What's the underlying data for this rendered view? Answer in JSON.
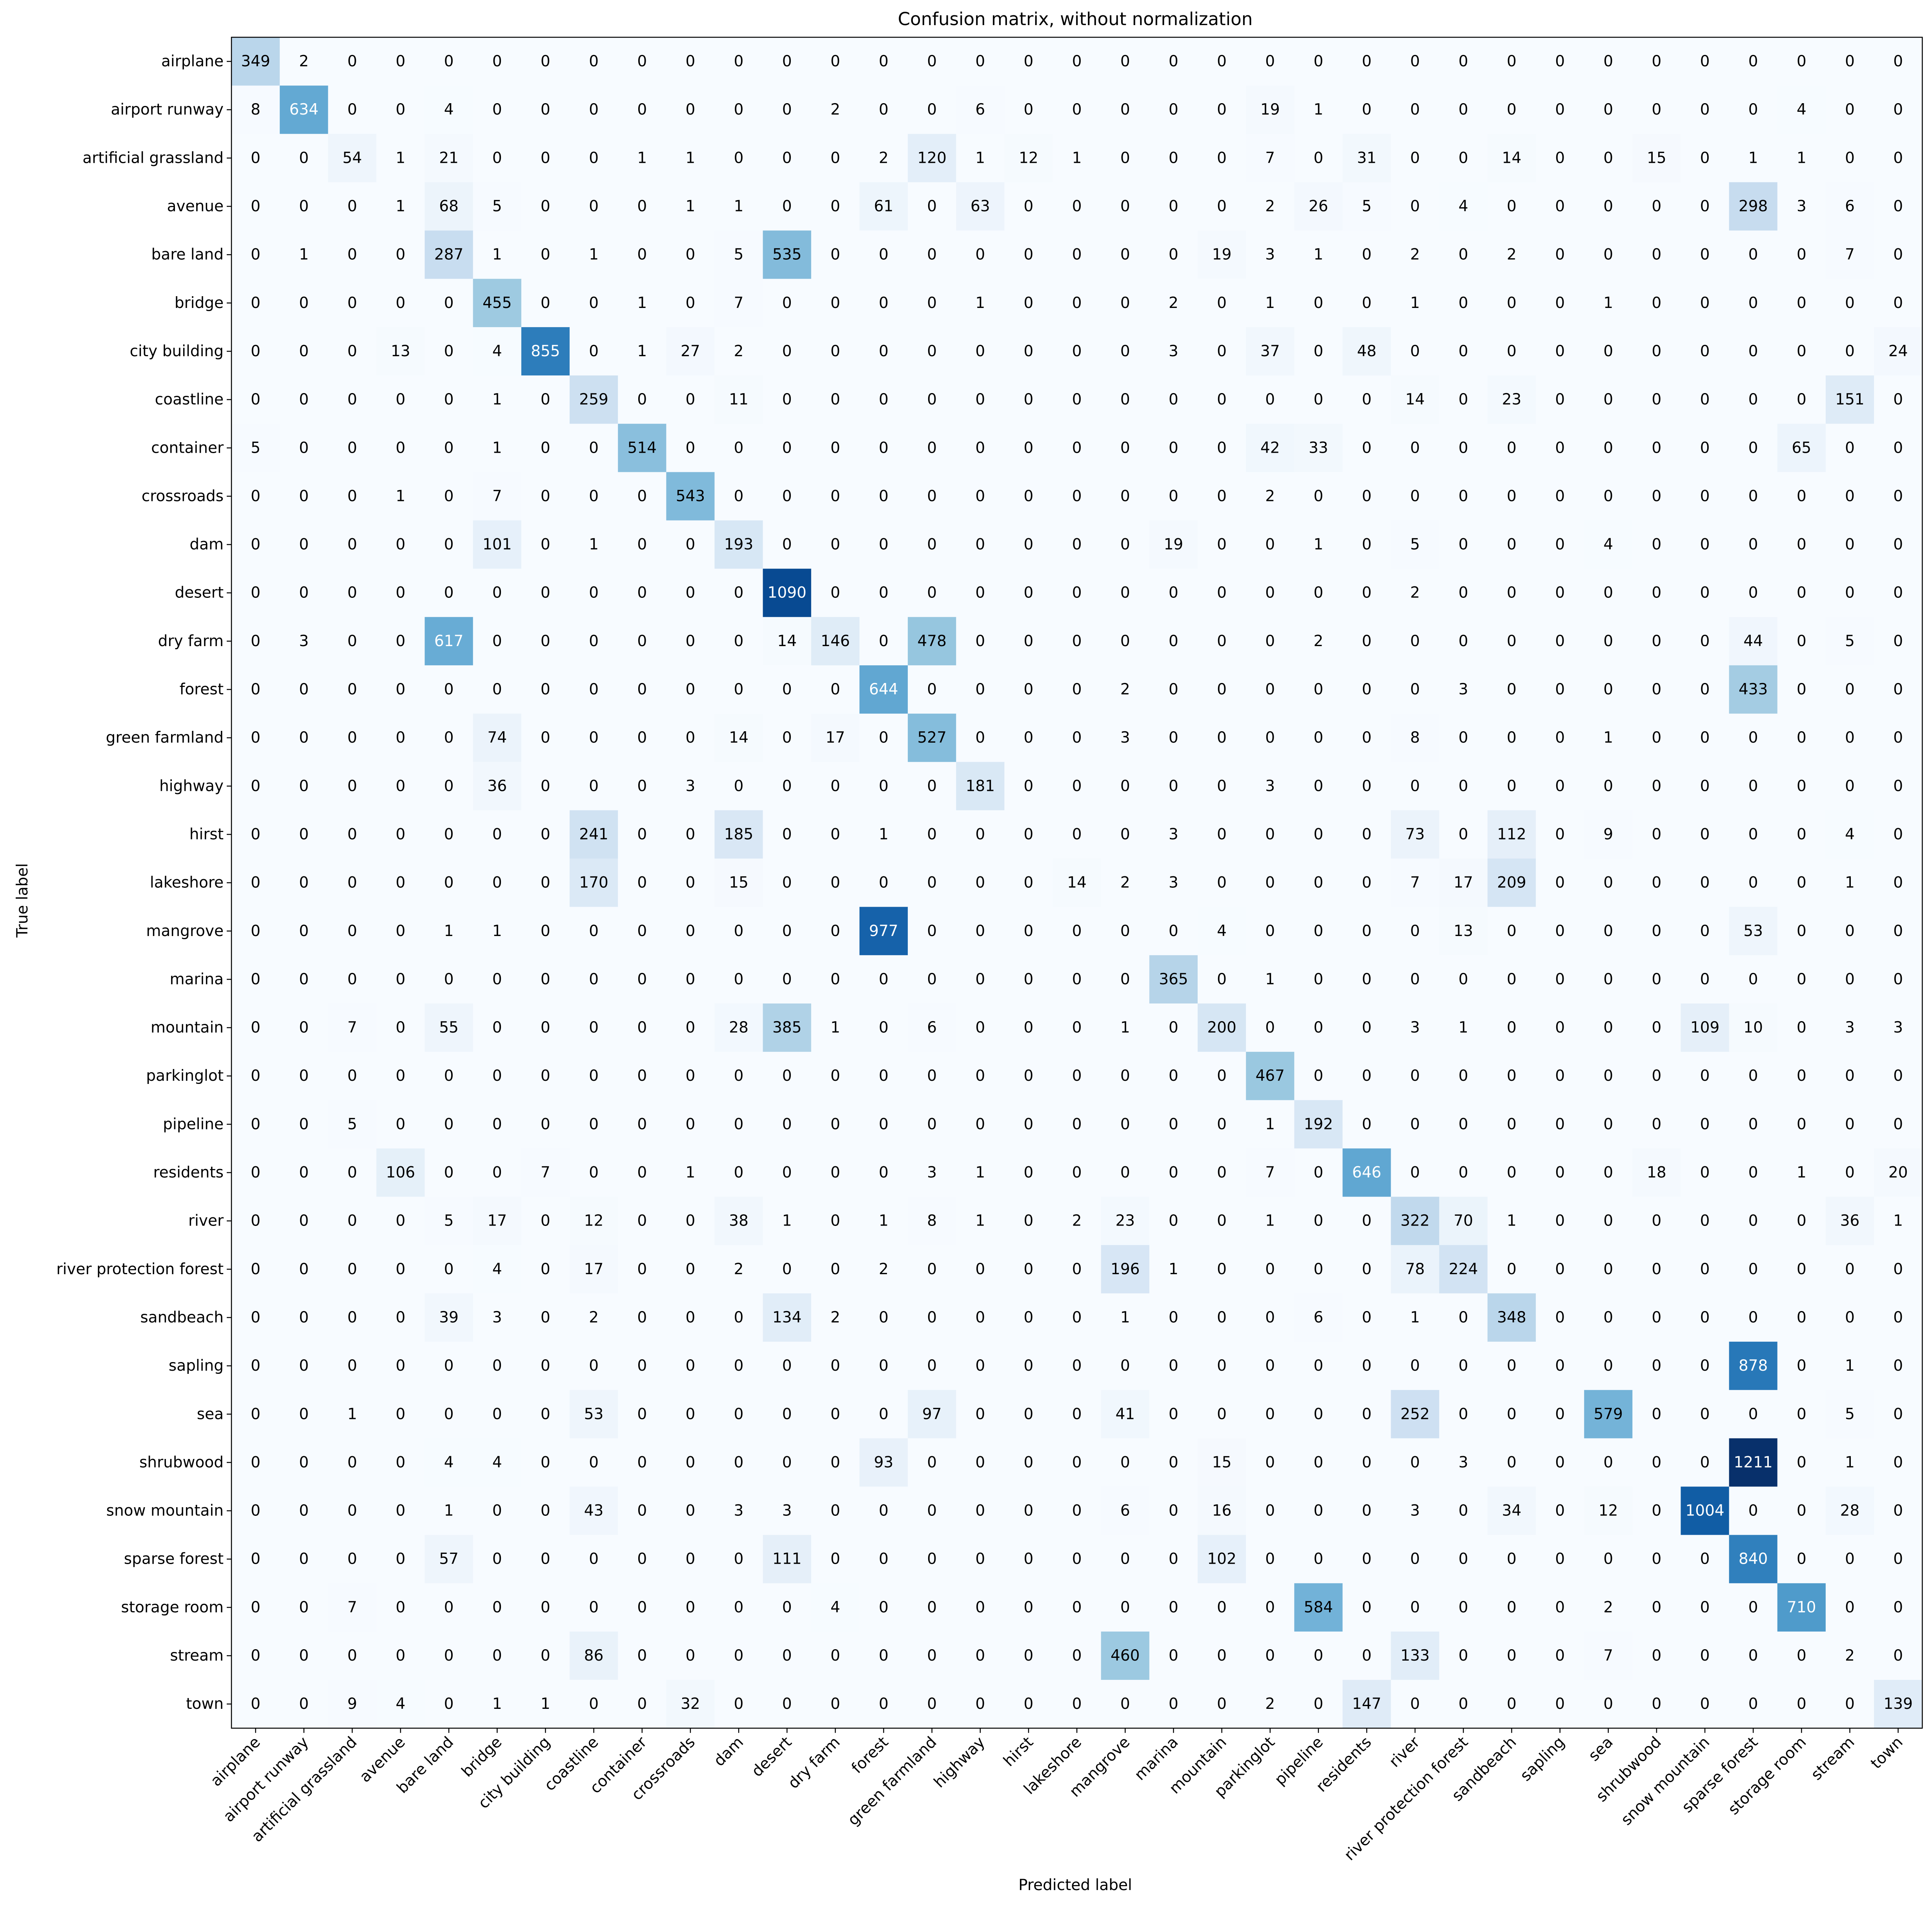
{
  "chart_data": {
    "type": "heatmap",
    "title": "Confusion matrix, without normalization",
    "xlabel": "Predicted label",
    "ylabel": "True label",
    "colormap": "Blues",
    "vmin": 0,
    "vmax": 1211,
    "colors": {
      "low": "#f7fbff",
      "high": "#08306b",
      "text_dark": "#000000",
      "text_light": "#ffffff"
    },
    "labels": [
      "airplane",
      "airport runway",
      "artificial grassland",
      "avenue",
      "bare land",
      "bridge",
      "city building",
      "coastline",
      "container",
      "crossroads",
      "dam",
      "desert",
      "dry farm",
      "forest",
      "green farmland",
      "highway",
      "hirst",
      "lakeshore",
      "mangrove",
      "marina",
      "mountain",
      "parkinglot",
      "pipeline",
      "residents",
      "river",
      "river protection forest",
      "sandbeach",
      "sapling",
      "sea",
      "shrubwood",
      "snow mountain",
      "sparse forest",
      "storage room",
      "stream",
      "town"
    ],
    "matrix": [
      [
        349,
        2,
        0,
        0,
        0,
        0,
        0,
        0,
        0,
        0,
        0,
        0,
        0,
        0,
        0,
        0,
        0,
        0,
        0,
        0,
        0,
        0,
        0,
        0,
        0,
        0,
        0,
        0,
        0,
        0,
        0,
        0,
        0,
        0,
        0
      ],
      [
        8,
        634,
        0,
        0,
        4,
        0,
        0,
        0,
        0,
        0,
        0,
        0,
        2,
        0,
        0,
        6,
        0,
        0,
        0,
        0,
        0,
        19,
        1,
        0,
        0,
        0,
        0,
        0,
        0,
        0,
        0,
        0,
        4,
        0,
        0
      ],
      [
        0,
        0,
        54,
        1,
        21,
        0,
        0,
        0,
        1,
        1,
        0,
        0,
        0,
        2,
        120,
        1,
        12,
        1,
        0,
        0,
        0,
        7,
        0,
        31,
        0,
        0,
        14,
        0,
        0,
        15,
        0,
        1,
        1,
        0,
        0
      ],
      [
        0,
        0,
        0,
        1,
        68,
        5,
        0,
        0,
        0,
        1,
        1,
        0,
        0,
        61,
        0,
        63,
        0,
        0,
        0,
        0,
        0,
        2,
        26,
        5,
        0,
        4,
        0,
        0,
        0,
        0,
        0,
        298,
        3,
        6,
        0
      ],
      [
        0,
        1,
        0,
        0,
        287,
        1,
        0,
        1,
        0,
        0,
        5,
        535,
        0,
        0,
        0,
        0,
        0,
        0,
        0,
        0,
        19,
        3,
        1,
        0,
        2,
        0,
        2,
        0,
        0,
        0,
        0,
        0,
        0,
        7,
        0
      ],
      [
        0,
        0,
        0,
        0,
        0,
        455,
        0,
        0,
        1,
        0,
        7,
        0,
        0,
        0,
        0,
        1,
        0,
        0,
        0,
        2,
        0,
        1,
        0,
        0,
        1,
        0,
        0,
        0,
        1,
        0,
        0,
        0,
        0,
        0,
        0
      ],
      [
        0,
        0,
        0,
        13,
        0,
        4,
        855,
        0,
        1,
        27,
        2,
        0,
        0,
        0,
        0,
        0,
        0,
        0,
        0,
        3,
        0,
        37,
        0,
        48,
        0,
        0,
        0,
        0,
        0,
        0,
        0,
        0,
        0,
        0,
        24
      ],
      [
        0,
        0,
        0,
        0,
        0,
        1,
        0,
        259,
        0,
        0,
        11,
        0,
        0,
        0,
        0,
        0,
        0,
        0,
        0,
        0,
        0,
        0,
        0,
        0,
        14,
        0,
        23,
        0,
        0,
        0,
        0,
        0,
        0,
        151,
        0
      ],
      [
        5,
        0,
        0,
        0,
        0,
        1,
        0,
        0,
        514,
        0,
        0,
        0,
        0,
        0,
        0,
        0,
        0,
        0,
        0,
        0,
        0,
        42,
        33,
        0,
        0,
        0,
        0,
        0,
        0,
        0,
        0,
        0,
        65,
        0,
        0
      ],
      [
        0,
        0,
        0,
        1,
        0,
        7,
        0,
        0,
        0,
        543,
        0,
        0,
        0,
        0,
        0,
        0,
        0,
        0,
        0,
        0,
        0,
        2,
        0,
        0,
        0,
        0,
        0,
        0,
        0,
        0,
        0,
        0,
        0,
        0,
        0
      ],
      [
        0,
        0,
        0,
        0,
        0,
        101,
        0,
        1,
        0,
        0,
        193,
        0,
        0,
        0,
        0,
        0,
        0,
        0,
        0,
        19,
        0,
        0,
        1,
        0,
        5,
        0,
        0,
        0,
        4,
        0,
        0,
        0,
        0,
        0,
        0
      ],
      [
        0,
        0,
        0,
        0,
        0,
        0,
        0,
        0,
        0,
        0,
        0,
        1090,
        0,
        0,
        0,
        0,
        0,
        0,
        0,
        0,
        0,
        0,
        0,
        0,
        2,
        0,
        0,
        0,
        0,
        0,
        0,
        0,
        0,
        0,
        0
      ],
      [
        0,
        3,
        0,
        0,
        617,
        0,
        0,
        0,
        0,
        0,
        0,
        14,
        146,
        0,
        478,
        0,
        0,
        0,
        0,
        0,
        0,
        0,
        2,
        0,
        0,
        0,
        0,
        0,
        0,
        0,
        0,
        44,
        0,
        5,
        0
      ],
      [
        0,
        0,
        0,
        0,
        0,
        0,
        0,
        0,
        0,
        0,
        0,
        0,
        0,
        644,
        0,
        0,
        0,
        0,
        2,
        0,
        0,
        0,
        0,
        0,
        0,
        3,
        0,
        0,
        0,
        0,
        0,
        433,
        0,
        0,
        0
      ],
      [
        0,
        0,
        0,
        0,
        0,
        74,
        0,
        0,
        0,
        0,
        14,
        0,
        17,
        0,
        527,
        0,
        0,
        0,
        3,
        0,
        0,
        0,
        0,
        0,
        8,
        0,
        0,
        0,
        1,
        0,
        0,
        0,
        0,
        0,
        0
      ],
      [
        0,
        0,
        0,
        0,
        0,
        36,
        0,
        0,
        0,
        3,
        0,
        0,
        0,
        0,
        0,
        181,
        0,
        0,
        0,
        0,
        0,
        3,
        0,
        0,
        0,
        0,
        0,
        0,
        0,
        0,
        0,
        0,
        0,
        0,
        0
      ],
      [
        0,
        0,
        0,
        0,
        0,
        0,
        0,
        241,
        0,
        0,
        185,
        0,
        0,
        1,
        0,
        0,
        0,
        0,
        0,
        3,
        0,
        0,
        0,
        0,
        73,
        0,
        112,
        0,
        9,
        0,
        0,
        0,
        0,
        4,
        0
      ],
      [
        0,
        0,
        0,
        0,
        0,
        0,
        0,
        170,
        0,
        0,
        15,
        0,
        0,
        0,
        0,
        0,
        0,
        14,
        2,
        3,
        0,
        0,
        0,
        0,
        7,
        17,
        209,
        0,
        0,
        0,
        0,
        0,
        0,
        1,
        0
      ],
      [
        0,
        0,
        0,
        0,
        1,
        1,
        0,
        0,
        0,
        0,
        0,
        0,
        0,
        977,
        0,
        0,
        0,
        0,
        0,
        0,
        4,
        0,
        0,
        0,
        0,
        13,
        0,
        0,
        0,
        0,
        0,
        53,
        0,
        0,
        0
      ],
      [
        0,
        0,
        0,
        0,
        0,
        0,
        0,
        0,
        0,
        0,
        0,
        0,
        0,
        0,
        0,
        0,
        0,
        0,
        0,
        365,
        0,
        1,
        0,
        0,
        0,
        0,
        0,
        0,
        0,
        0,
        0,
        0,
        0,
        0,
        0
      ],
      [
        0,
        0,
        7,
        0,
        55,
        0,
        0,
        0,
        0,
        0,
        28,
        385,
        1,
        0,
        6,
        0,
        0,
        0,
        1,
        0,
        200,
        0,
        0,
        0,
        3,
        1,
        0,
        0,
        0,
        0,
        109,
        10,
        0,
        3,
        3
      ],
      [
        0,
        0,
        0,
        0,
        0,
        0,
        0,
        0,
        0,
        0,
        0,
        0,
        0,
        0,
        0,
        0,
        0,
        0,
        0,
        0,
        0,
        467,
        0,
        0,
        0,
        0,
        0,
        0,
        0,
        0,
        0,
        0,
        0,
        0,
        0
      ],
      [
        0,
        0,
        5,
        0,
        0,
        0,
        0,
        0,
        0,
        0,
        0,
        0,
        0,
        0,
        0,
        0,
        0,
        0,
        0,
        0,
        0,
        1,
        192,
        0,
        0,
        0,
        0,
        0,
        0,
        0,
        0,
        0,
        0,
        0,
        0
      ],
      [
        0,
        0,
        0,
        106,
        0,
        0,
        7,
        0,
        0,
        1,
        0,
        0,
        0,
        0,
        3,
        1,
        0,
        0,
        0,
        0,
        0,
        7,
        0,
        646,
        0,
        0,
        0,
        0,
        0,
        18,
        0,
        0,
        1,
        0,
        20
      ],
      [
        0,
        0,
        0,
        0,
        5,
        17,
        0,
        12,
        0,
        0,
        38,
        1,
        0,
        1,
        8,
        1,
        0,
        2,
        23,
        0,
        0,
        1,
        0,
        0,
        322,
        70,
        1,
        0,
        0,
        0,
        0,
        0,
        0,
        36,
        1
      ],
      [
        0,
        0,
        0,
        0,
        0,
        4,
        0,
        17,
        0,
        0,
        2,
        0,
        0,
        2,
        0,
        0,
        0,
        0,
        196,
        1,
        0,
        0,
        0,
        0,
        78,
        224,
        0,
        0,
        0,
        0,
        0,
        0,
        0,
        0,
        0
      ],
      [
        0,
        0,
        0,
        0,
        39,
        3,
        0,
        2,
        0,
        0,
        0,
        134,
        2,
        0,
        0,
        0,
        0,
        0,
        1,
        0,
        0,
        0,
        6,
        0,
        1,
        0,
        348,
        0,
        0,
        0,
        0,
        0,
        0,
        0,
        0
      ],
      [
        0,
        0,
        0,
        0,
        0,
        0,
        0,
        0,
        0,
        0,
        0,
        0,
        0,
        0,
        0,
        0,
        0,
        0,
        0,
        0,
        0,
        0,
        0,
        0,
        0,
        0,
        0,
        0,
        0,
        0,
        0,
        878,
        0,
        1,
        0
      ],
      [
        0,
        0,
        1,
        0,
        0,
        0,
        0,
        53,
        0,
        0,
        0,
        0,
        0,
        0,
        97,
        0,
        0,
        0,
        41,
        0,
        0,
        0,
        0,
        0,
        252,
        0,
        0,
        0,
        579,
        0,
        0,
        0,
        0,
        5,
        0
      ],
      [
        0,
        0,
        0,
        0,
        4,
        4,
        0,
        0,
        0,
        0,
        0,
        0,
        0,
        93,
        0,
        0,
        0,
        0,
        0,
        0,
        15,
        0,
        0,
        0,
        0,
        3,
        0,
        0,
        0,
        0,
        0,
        1211,
        0,
        1,
        0
      ],
      [
        0,
        0,
        0,
        0,
        1,
        0,
        0,
        43,
        0,
        0,
        3,
        3,
        0,
        0,
        0,
        0,
        0,
        0,
        6,
        0,
        16,
        0,
        0,
        0,
        3,
        0,
        34,
        0,
        12,
        0,
        1004,
        0,
        0,
        28,
        0
      ],
      [
        0,
        0,
        0,
        0,
        57,
        0,
        0,
        0,
        0,
        0,
        0,
        111,
        0,
        0,
        0,
        0,
        0,
        0,
        0,
        0,
        102,
        0,
        0,
        0,
        0,
        0,
        0,
        0,
        0,
        0,
        0,
        840,
        0,
        0,
        0
      ],
      [
        0,
        0,
        7,
        0,
        0,
        0,
        0,
        0,
        0,
        0,
        0,
        0,
        4,
        0,
        0,
        0,
        0,
        0,
        0,
        0,
        0,
        0,
        584,
        0,
        0,
        0,
        0,
        0,
        2,
        0,
        0,
        0,
        710,
        0,
        0
      ],
      [
        0,
        0,
        0,
        0,
        0,
        0,
        0,
        86,
        0,
        0,
        0,
        0,
        0,
        0,
        0,
        0,
        0,
        0,
        460,
        0,
        0,
        0,
        0,
        0,
        133,
        0,
        0,
        0,
        7,
        0,
        0,
        0,
        0,
        2,
        0
      ],
      [
        0,
        0,
        9,
        4,
        0,
        1,
        1,
        0,
        0,
        32,
        0,
        0,
        0,
        0,
        0,
        0,
        0,
        0,
        0,
        0,
        0,
        2,
        0,
        147,
        0,
        0,
        0,
        0,
        0,
        0,
        0,
        0,
        0,
        0,
        139
      ]
    ]
  }
}
